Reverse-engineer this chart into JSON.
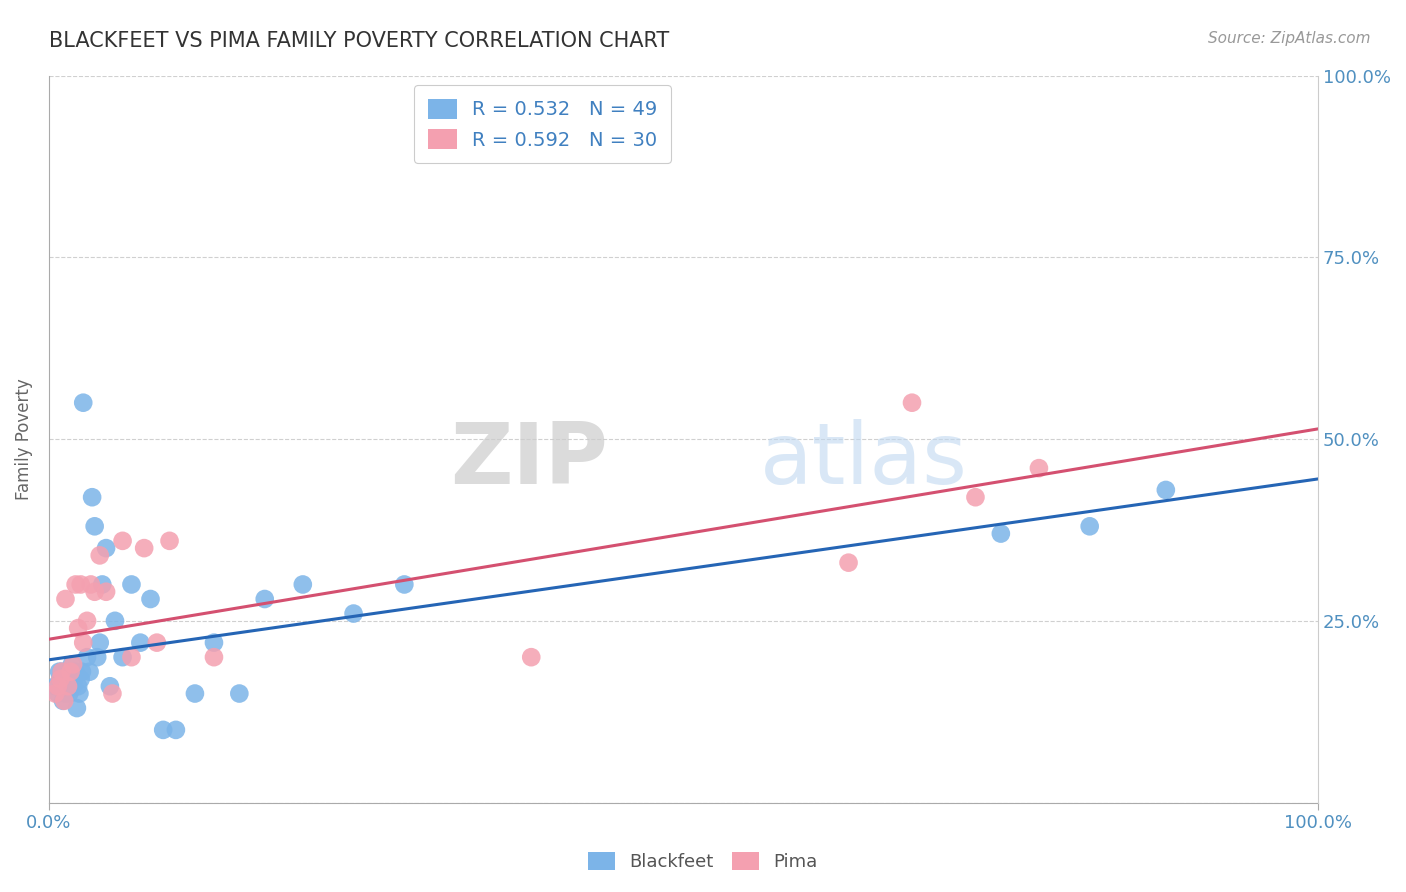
{
  "title": "BLACKFEET VS PIMA FAMILY POVERTY CORRELATION CHART",
  "source": "Source: ZipAtlas.com",
  "ylabel": "Family Poverty",
  "xlim": [
    0,
    1
  ],
  "ylim": [
    0,
    1
  ],
  "xticks": [
    0,
    1.0
  ],
  "yticks": [
    0,
    0.25,
    0.5,
    0.75,
    1.0
  ],
  "xticklabels": [
    "0.0%",
    "100.0%"
  ],
  "yticklabels_right": [
    "",
    "25.0%",
    "50.0%",
    "75.0%",
    "100.0%"
  ],
  "blackfeet_color": "#7cb4e8",
  "pima_color": "#f4a0b0",
  "blackfeet_line_color": "#2565b5",
  "pima_line_color": "#d45070",
  "blackfeet_R": 0.532,
  "blackfeet_N": 49,
  "pima_R": 0.592,
  "pima_N": 30,
  "blackfeet_x": [
    0.005,
    0.007,
    0.008,
    0.009,
    0.01,
    0.01,
    0.011,
    0.012,
    0.013,
    0.014,
    0.015,
    0.016,
    0.017,
    0.018,
    0.019,
    0.02,
    0.021,
    0.022,
    0.023,
    0.024,
    0.025,
    0.026,
    0.027,
    0.03,
    0.032,
    0.034,
    0.036,
    0.038,
    0.04,
    0.042,
    0.045,
    0.048,
    0.052,
    0.058,
    0.065,
    0.072,
    0.08,
    0.09,
    0.1,
    0.115,
    0.13,
    0.15,
    0.17,
    0.2,
    0.24,
    0.28,
    0.75,
    0.82,
    0.88
  ],
  "blackfeet_y": [
    0.16,
    0.15,
    0.18,
    0.17,
    0.16,
    0.18,
    0.14,
    0.17,
    0.15,
    0.16,
    0.17,
    0.15,
    0.18,
    0.19,
    0.16,
    0.17,
    0.18,
    0.13,
    0.16,
    0.15,
    0.17,
    0.18,
    0.55,
    0.2,
    0.18,
    0.42,
    0.38,
    0.2,
    0.22,
    0.3,
    0.35,
    0.16,
    0.25,
    0.2,
    0.3,
    0.22,
    0.28,
    0.1,
    0.1,
    0.15,
    0.22,
    0.15,
    0.28,
    0.3,
    0.26,
    0.3,
    0.37,
    0.38,
    0.43
  ],
  "pima_x": [
    0.005,
    0.007,
    0.009,
    0.01,
    0.012,
    0.013,
    0.015,
    0.017,
    0.019,
    0.021,
    0.023,
    0.025,
    0.027,
    0.03,
    0.033,
    0.036,
    0.04,
    0.045,
    0.05,
    0.058,
    0.065,
    0.075,
    0.085,
    0.095,
    0.13,
    0.38,
    0.63,
    0.68,
    0.73,
    0.78
  ],
  "pima_y": [
    0.15,
    0.16,
    0.17,
    0.18,
    0.14,
    0.28,
    0.16,
    0.18,
    0.19,
    0.3,
    0.24,
    0.3,
    0.22,
    0.25,
    0.3,
    0.29,
    0.34,
    0.29,
    0.15,
    0.36,
    0.2,
    0.35,
    0.22,
    0.36,
    0.2,
    0.2,
    0.33,
    0.55,
    0.42,
    0.46
  ],
  "watermark_zip": "ZIP",
  "watermark_atlas": "atlas",
  "background_color": "#ffffff",
  "grid_color": "#d0d0d0",
  "title_color": "#333333",
  "axis_tick_color": "#5090c0",
  "legend_label_color": "#4080c0"
}
